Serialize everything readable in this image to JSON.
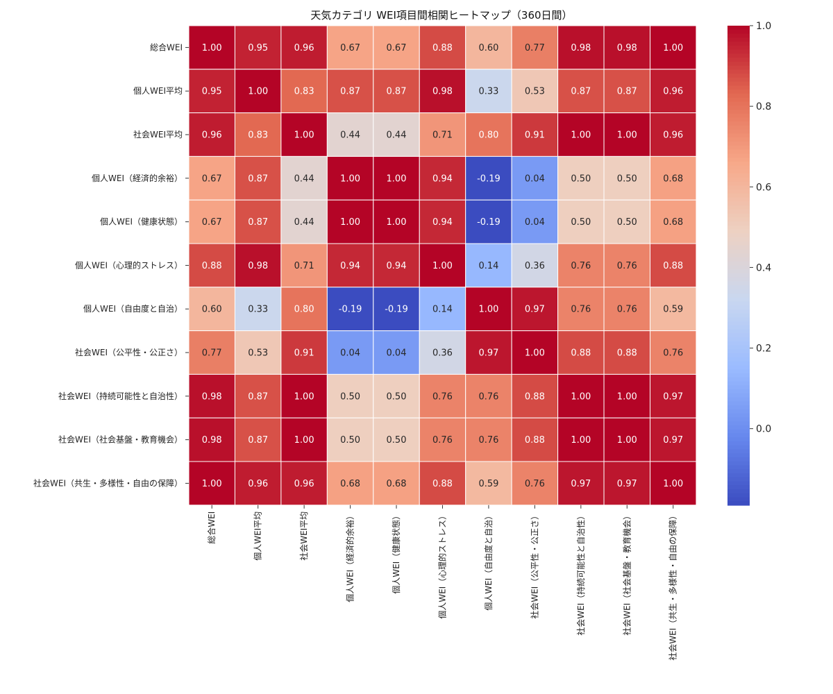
{
  "chart_data": {
    "type": "heatmap",
    "title": "天気カテゴリ WEI項目間相関ヒートマップ（360日間）",
    "row_labels": [
      "総合WEI",
      "個人WEI平均",
      "社会WEI平均",
      "個人WEI（経済的余裕）",
      "個人WEI（健康状態）",
      "個人WEI（心理的ストレス）",
      "個人WEI（自由度と自治）",
      "社会WEI（公平性・公正さ）",
      "社会WEI（持続可能性と自治性）",
      "社会WEI（社会基盤・教育機会）",
      "社会WEI（共生・多様性・自由の保障）"
    ],
    "col_labels": [
      "総合WEI",
      "個人WEI平均",
      "社会WEI平均",
      "個人WEI（経済的余裕）",
      "個人WEI（健康状態）",
      "個人WEI（心理的ストレス）",
      "個人WEI（自由度と自治）",
      "社会WEI（公平性・公正さ）",
      "社会WEI（持続可能性と自治性）",
      "社会WEI（社会基盤・教育機会）",
      "社会WEI（共生・多様性・自由の保障）"
    ],
    "values": [
      [
        1.0,
        0.95,
        0.96,
        0.67,
        0.67,
        0.88,
        0.6,
        0.77,
        0.98,
        0.98,
        1.0
      ],
      [
        0.95,
        1.0,
        0.83,
        0.87,
        0.87,
        0.98,
        0.33,
        0.53,
        0.87,
        0.87,
        0.96
      ],
      [
        0.96,
        0.83,
        1.0,
        0.44,
        0.44,
        0.71,
        0.8,
        0.91,
        1.0,
        1.0,
        0.96
      ],
      [
        0.67,
        0.87,
        0.44,
        1.0,
        1.0,
        0.94,
        -0.19,
        0.04,
        0.5,
        0.5,
        0.68
      ],
      [
        0.67,
        0.87,
        0.44,
        1.0,
        1.0,
        0.94,
        -0.19,
        0.04,
        0.5,
        0.5,
        0.68
      ],
      [
        0.88,
        0.98,
        0.71,
        0.94,
        0.94,
        1.0,
        0.14,
        0.36,
        0.76,
        0.76,
        0.88
      ],
      [
        0.6,
        0.33,
        0.8,
        -0.19,
        -0.19,
        0.14,
        1.0,
        0.97,
        0.76,
        0.76,
        0.59
      ],
      [
        0.77,
        0.53,
        0.91,
        0.04,
        0.04,
        0.36,
        0.97,
        1.0,
        0.88,
        0.88,
        0.76
      ],
      [
        0.98,
        0.87,
        1.0,
        0.5,
        0.5,
        0.76,
        0.76,
        0.88,
        1.0,
        1.0,
        0.97
      ],
      [
        0.98,
        0.87,
        1.0,
        0.5,
        0.5,
        0.76,
        0.76,
        0.88,
        1.0,
        1.0,
        0.97
      ],
      [
        1.0,
        0.96,
        0.96,
        0.68,
        0.68,
        0.88,
        0.59,
        0.76,
        0.97,
        0.97,
        1.0
      ]
    ],
    "value_format": "2 decimals",
    "colormap": "coolwarm",
    "vmin": -0.19,
    "vmax": 1.0,
    "colorbar": {
      "ticks": [
        0.0,
        0.2,
        0.4,
        0.6,
        0.8,
        1.0
      ],
      "tick_labels": [
        "0.0",
        "0.2",
        "0.4",
        "0.6",
        "0.8",
        "1.0"
      ],
      "placement": "right"
    },
    "cell_border_color": "#ffffff",
    "colormap_stops": [
      "#3b4cc0",
      "#6788ee",
      "#9abbff",
      "#c9d7f0",
      "#edd1c2",
      "#f7a889",
      "#e26952",
      "#b40426"
    ]
  }
}
